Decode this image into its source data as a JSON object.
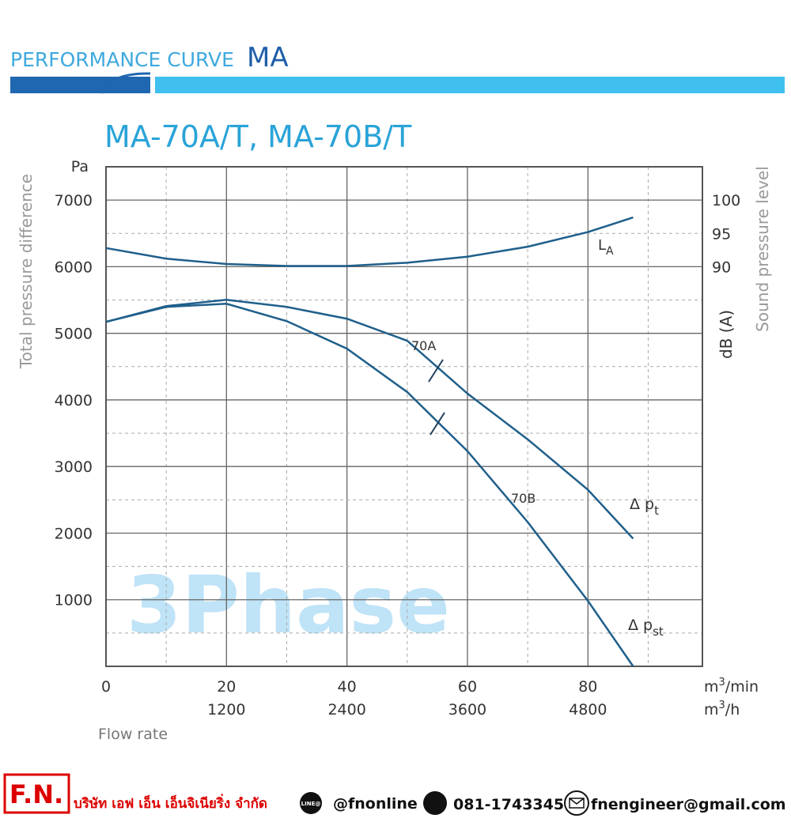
{
  "header": {
    "title": "PERFORMANCE CURVE",
    "series": "MA"
  },
  "chart_data": {
    "type": "line",
    "title": "MA-70A/T, MA-70B/T",
    "y_label": "Total pressure difference",
    "y_unit": "Pa",
    "y2_label": "Sound pressure level",
    "y2_unit": "dB (A)",
    "x_label": "Flow rate",
    "x_unit": [
      "m",
      "3",
      "/min"
    ],
    "x2_unit": [
      "m",
      "3",
      "/h"
    ],
    "watermark": "3Phase",
    "x": [
      0,
      10,
      20,
      30,
      40,
      50,
      60,
      70,
      80,
      87.5
    ],
    "series": [
      {
        "name": "70A",
        "color": "#1f5f8b",
        "values": [
          5172,
          5408,
          5503,
          5396,
          5219,
          4888,
          4095,
          3408,
          2651,
          1917
        ]
      },
      {
        "name": "70B",
        "color": "#1f5f8b",
        "values": [
          5172,
          5396,
          5444,
          5183,
          4769,
          4118,
          3231,
          2166,
          982,
          0
        ]
      },
      {
        "color": "#1f5f8b",
        "axis": "y2",
        "values": [
          92.8,
          91.2,
          90.4,
          90.1,
          90.1,
          90.6,
          91.5,
          93.0,
          95.2,
          97.4
        ]
      }
    ],
    "curve_labels": {
      "la": [
        "L",
        "A"
      ],
      "pt": [
        "Δ p",
        "t"
      ],
      "pst": [
        "Δ p",
        "st"
      ]
    },
    "xlim": [
      0,
      99
    ],
    "xticks": [
      0,
      20,
      40,
      60,
      80
    ],
    "x2lim": [
      0,
      5940
    ],
    "x2ticks": [
      1200,
      2400,
      3600,
      4800
    ],
    "ylim": [
      0,
      7500
    ],
    "yticks": [
      1000,
      2000,
      3000,
      4000,
      5000,
      6000,
      7000
    ],
    "y2lim": [
      30,
      105
    ],
    "y2ticks": [
      90,
      95,
      100
    ],
    "grid": true,
    "minor_grid": true
  },
  "footer": {
    "logo": "F.N.",
    "company": "บริษัท เอฟ เอ็น เอ็นจิเนียริ่ง จำกัด",
    "line_icon": "LINE@",
    "line": "@fnonline",
    "phone": "081-1743345",
    "email": "fnengineer@gmail.com"
  }
}
